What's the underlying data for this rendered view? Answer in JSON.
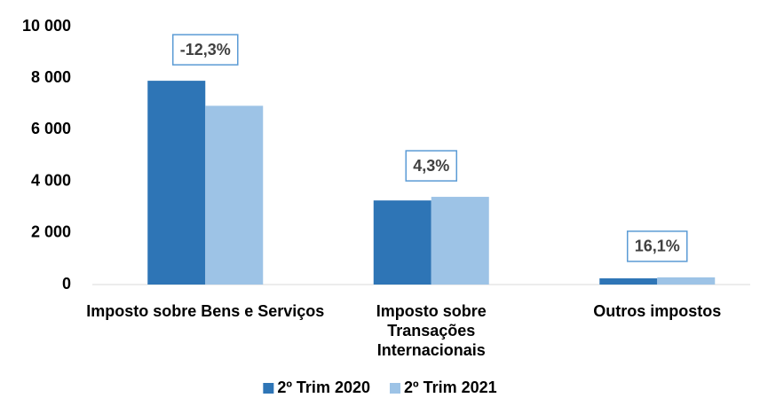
{
  "chart_data": {
    "type": "bar",
    "categories": [
      "Imposto sobre Bens e Serviços",
      "Imposto sobre Transações Internacionais",
      "Outros impostos"
    ],
    "series": [
      {
        "name": "2º Trim 2020",
        "color": "#2e75b6",
        "values": [
          7900,
          3260,
          240
        ]
      },
      {
        "name": "2º Trim 2021",
        "color": "#9dc3e6",
        "values": [
          6930,
          3400,
          279
        ]
      }
    ],
    "annotations": [
      "-12,3%",
      "4,3%",
      "16,1%"
    ],
    "ylim": [
      0,
      10000
    ],
    "yticks": [
      0,
      {
        "value": 2000,
        "label": "2 000"
      },
      {
        "value": 4000,
        "label": "4 000"
      },
      {
        "value": 6000,
        "label": "6 000"
      },
      {
        "value": 8000,
        "label": "8 000"
      },
      {
        "value": 10000,
        "label": "10 000"
      }
    ],
    "grid": false,
    "legend": "bottom"
  }
}
